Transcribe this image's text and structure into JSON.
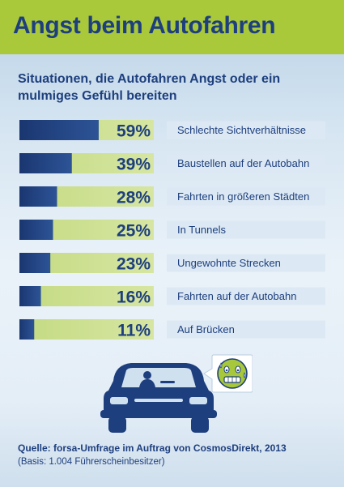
{
  "header": {
    "title": "Angst beim Autofahren"
  },
  "chart_data": {
    "type": "bar",
    "title": "Situationen, die Autofahren Angst oder ein mulmiges Gefühl bereiten",
    "categories": [
      "Schlechte Sichtverhältnisse",
      "Baustellen auf der Autobahn",
      "Fahrten in größeren Städten",
      "In Tunnels",
      "Ungewohnte Strecken",
      "Fahrten auf der Autobahn",
      "Auf Brücken"
    ],
    "values": [
      59,
      39,
      28,
      25,
      23,
      16,
      11
    ],
    "value_labels": [
      "59%",
      "39%",
      "28%",
      "25%",
      "23%",
      "16%",
      "11%"
    ],
    "unit": "%",
    "xlim": [
      0,
      100
    ],
    "orientation": "horizontal",
    "grid": false,
    "colors": {
      "bar_fill": "#1e3f7e",
      "bar_track": "#c9dd8a",
      "label_box": "#dce9f4"
    }
  },
  "footer": {
    "source": "Quelle: forsa-Umfrage im Auftrag von CosmosDirekt, 2013",
    "basis": "(Basis: 1.004 Führerscheinbesitzer)"
  }
}
